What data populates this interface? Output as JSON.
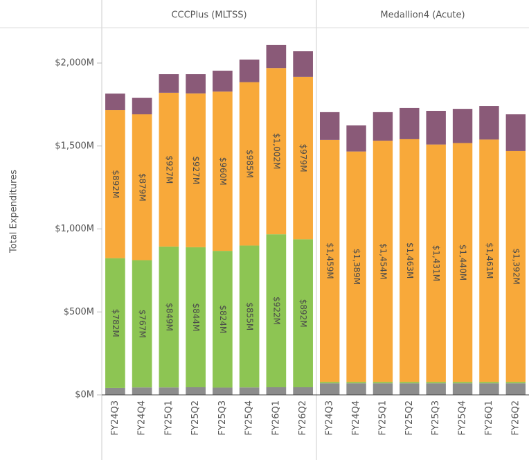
{
  "chart_data": {
    "type": "bar",
    "stacked": true,
    "y_label": "Total Expenditures",
    "ylim": [
      0,
      2213
    ],
    "yticks": [
      {
        "value": 0,
        "label": "$0M"
      },
      {
        "value": 500,
        "label": "$500M"
      },
      {
        "value": 1000,
        "label": "$1,000M"
      },
      {
        "value": 1500,
        "label": "$1,500M"
      },
      {
        "value": 2000,
        "label": "$2,000M"
      }
    ],
    "panels": [
      {
        "title": "CCCPlus (MLTSS)",
        "categories": [
          "FY24Q3",
          "FY24Q4",
          "FY25Q1",
          "FY25Q2",
          "FY25Q3",
          "FY25Q4",
          "FY26Q1",
          "FY26Q2"
        ],
        "series": [
          {
            "color": "#8c8c8c",
            "values": [
              42,
              45,
              45,
              46,
              44,
              45,
              46,
              46
            ]
          },
          {
            "color": "#8dc553",
            "values": [
              782,
              767,
              849,
              844,
              824,
              855,
              922,
              892
            ],
            "value_labels": [
              "$782M",
              "$767M",
              "$849M",
              "$844M",
              "$824M",
              "$855M",
              "$922M",
              "$892M"
            ]
          },
          {
            "color": "#f8a93a",
            "values": [
              892,
              879,
              927,
              927,
              960,
              985,
              1002,
              979
            ],
            "value_labels": [
              "$892M",
              "$879M",
              "$927M",
              "$927M",
              "$960M",
              "$985M",
              "$1,002M",
              "$979M"
            ]
          },
          {
            "color": "#8a5a78",
            "values": [
              100,
              100,
              112,
              116,
              126,
              136,
              139,
              154
            ]
          }
        ]
      },
      {
        "title": "Medallion4 (Acute)",
        "categories": [
          "FY24Q3",
          "FY24Q4",
          "FY25Q1",
          "FY25Q2",
          "FY25Q3",
          "FY25Q4",
          "FY26Q1",
          "FY26Q2"
        ],
        "series": [
          {
            "color": "#8c8c8c",
            "values": [
              70,
              70,
              70,
              70,
              70,
              70,
              70,
              70
            ]
          },
          {
            "color": "#8dc553",
            "values": [
              8,
              8,
              8,
              8,
              8,
              8,
              8,
              8
            ]
          },
          {
            "color": "#f8a93a",
            "values": [
              1459,
              1389,
              1454,
              1463,
              1431,
              1440,
              1461,
              1392
            ],
            "value_labels": [
              "$1,459M",
              "$1,389M",
              "$1,454M",
              "$1,463M",
              "$1,431M",
              "$1,440M",
              "$1,461M",
              "$1,392M"
            ]
          },
          {
            "color": "#8a5a78",
            "values": [
              167,
              157,
              172,
              188,
              203,
              206,
              202,
              221
            ]
          }
        ]
      }
    ]
  }
}
